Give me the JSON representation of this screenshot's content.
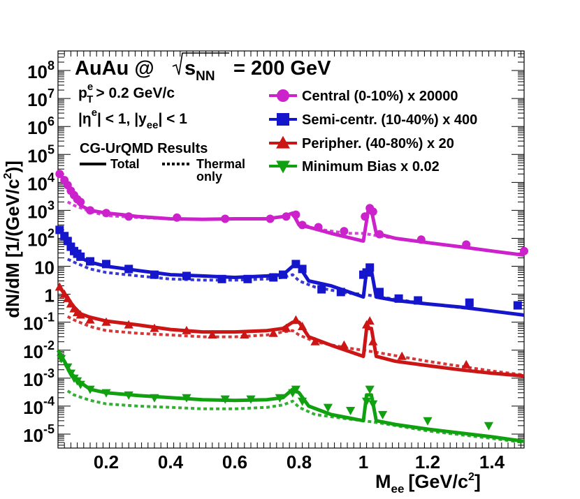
{
  "chart_data": {
    "type": "line",
    "scale": "log",
    "title_main": "AuAu @",
    "title_sqrt": "s",
    "title_sqrt_sub": "NN",
    "title_energy": "= 200 GeV",
    "cuts": {
      "pt_p": "p",
      "pt_sup": "e",
      "pt_sub": "T",
      "pt_rest": "> 0.2 GeV/c",
      "eta_open": "|η",
      "eta_sup": "e",
      "eta_rest": "| < 1, |y",
      "eta_sub": "ee",
      "eta_end": "| < 1"
    },
    "results_label": "CG-UrQMD Results",
    "line_styles": {
      "total": "Total",
      "thermal_line1": "Thermal",
      "thermal_line2": "only"
    },
    "xlabel_main": "M",
    "xlabel_sub": "ee",
    "xlabel_unit": "[GeV/c",
    "xlabel_sup": "2",
    "xlabel_end": "]",
    "ylabel_main": "dN/dM [1/(GeV/c",
    "ylabel_sup": "2",
    "ylabel_end": ")]",
    "xlim": [
      0.05,
      1.5
    ],
    "ylim_decades": [
      -5.5,
      8.7
    ],
    "x_ticks": [
      "0.2",
      "0.4",
      "0.6",
      "0.8",
      "1",
      "1.2",
      "1.4"
    ],
    "x_tick_values": [
      0.2,
      0.4,
      0.6,
      0.8,
      1.0,
      1.2,
      1.4
    ],
    "y_ticks": [
      {
        "decade": 8,
        "base": "10",
        "exp": "8"
      },
      {
        "decade": 7,
        "base": "10",
        "exp": "7"
      },
      {
        "decade": 6,
        "base": "10",
        "exp": "6"
      },
      {
        "decade": 5,
        "base": "10",
        "exp": "5"
      },
      {
        "decade": 4,
        "base": "10",
        "exp": "4"
      },
      {
        "decade": 3,
        "base": "10",
        "exp": "3"
      },
      {
        "decade": 2,
        "base": "10",
        "exp": "2"
      },
      {
        "decade": 1,
        "base": "10",
        "exp": ""
      },
      {
        "decade": 0,
        "base": "1",
        "exp": ""
      },
      {
        "decade": -1,
        "base": "10",
        "exp": "-1"
      },
      {
        "decade": -2,
        "base": "10",
        "exp": "-2"
      },
      {
        "decade": -3,
        "base": "10",
        "exp": "-3"
      },
      {
        "decade": -4,
        "base": "10",
        "exp": "-4"
      },
      {
        "decade": -5,
        "base": "10",
        "exp": "-5"
      }
    ],
    "series": [
      {
        "name": "Central (0-10%)",
        "factor": "x 20000",
        "color": "#cc22cc",
        "marker": "circle",
        "total_x": [
          0.06,
          0.08,
          0.1,
          0.12,
          0.15,
          0.2,
          0.25,
          0.3,
          0.4,
          0.5,
          0.6,
          0.7,
          0.75,
          0.78,
          0.8,
          0.83,
          0.9,
          1.0,
          1.015,
          1.025,
          1.04,
          1.1,
          1.2,
          1.3,
          1.4,
          1.5
        ],
        "total_y": [
          18000,
          8000,
          3500,
          1500,
          1000,
          800,
          700,
          600,
          500,
          480,
          500,
          500,
          600,
          800,
          300,
          250,
          150,
          80,
          1000,
          1000,
          150,
          100,
          70,
          50,
          35,
          25
        ],
        "thermal_x": [
          0.08,
          0.1,
          0.15,
          0.2,
          0.3,
          0.4,
          0.5,
          0.6,
          0.7,
          0.75,
          0.78,
          0.8,
          0.85,
          0.95,
          1.0,
          1.05,
          1.2,
          1.4,
          1.5
        ],
        "thermal_y": [
          2000,
          1500,
          900,
          650,
          550,
          500,
          480,
          500,
          520,
          600,
          700,
          350,
          220,
          150,
          150,
          120,
          70,
          35,
          25
        ],
        "markers_x": [
          0.055,
          0.07,
          0.08,
          0.09,
          0.1,
          0.11,
          0.12,
          0.15,
          0.2,
          0.27,
          0.42,
          0.57,
          0.71,
          0.76,
          0.79,
          0.81,
          0.86,
          0.94,
          1.005,
          1.02,
          1.03,
          1.05,
          1.18,
          1.32,
          1.5
        ],
        "markers_y": [
          20000,
          12000,
          8000,
          5000,
          3500,
          2500,
          2000,
          1000,
          800,
          600,
          550,
          500,
          500,
          600,
          700,
          300,
          250,
          180,
          600,
          1200,
          900,
          140,
          90,
          60,
          35
        ]
      },
      {
        "name": "Semi-centr. (10-40%)",
        "factor": "x 400",
        "color": "#1515cc",
        "marker": "square",
        "total_x": [
          0.06,
          0.08,
          0.1,
          0.12,
          0.15,
          0.2,
          0.3,
          0.4,
          0.5,
          0.6,
          0.7,
          0.75,
          0.78,
          0.8,
          0.83,
          0.9,
          1.0,
          1.01,
          1.025,
          1.04,
          1.1,
          1.2,
          1.3,
          1.4,
          1.5
        ],
        "total_y": [
          180,
          90,
          40,
          20,
          14,
          10,
          7,
          5,
          4.5,
          4,
          4.5,
          5,
          10,
          10,
          3,
          2,
          0.8,
          7,
          7,
          0.8,
          0.6,
          0.45,
          0.35,
          0.25,
          0.18
        ],
        "thermal_x": [
          0.08,
          0.1,
          0.15,
          0.2,
          0.3,
          0.4,
          0.5,
          0.6,
          0.7,
          0.75,
          0.78,
          0.8,
          0.85,
          0.95,
          1.0,
          1.05,
          1.2,
          1.4,
          1.5
        ],
        "thermal_y": [
          18,
          14,
          8,
          6,
          4.5,
          3.5,
          3.2,
          3.2,
          3.5,
          4,
          5,
          3,
          1.8,
          1.1,
          1,
          0.8,
          0.45,
          0.25,
          0.18
        ],
        "markers_x": [
          0.055,
          0.07,
          0.08,
          0.09,
          0.1,
          0.11,
          0.12,
          0.15,
          0.2,
          0.27,
          0.35,
          0.45,
          0.56,
          0.64,
          0.72,
          0.75,
          0.79,
          0.81,
          0.87,
          0.93,
          1.0,
          1.01,
          1.02,
          1.05,
          1.11,
          1.17,
          1.33,
          1.48
        ],
        "markers_y": [
          200,
          120,
          80,
          50,
          35,
          28,
          22,
          15,
          12,
          8,
          5,
          4.5,
          3.5,
          3.5,
          4,
          5,
          12,
          8,
          1.5,
          1.2,
          5,
          6,
          9,
          1.2,
          0.7,
          0.6,
          0.5,
          0.4
        ]
      },
      {
        "name": "Peripher. (40-80%)",
        "factor": "x 20",
        "color": "#cc1515",
        "marker": "triangle-up",
        "total_x": [
          0.06,
          0.08,
          0.1,
          0.12,
          0.15,
          0.2,
          0.3,
          0.4,
          0.5,
          0.6,
          0.7,
          0.75,
          0.78,
          0.8,
          0.83,
          0.9,
          1.0,
          1.01,
          1.025,
          1.04,
          1.1,
          1.2,
          1.3,
          1.4,
          1.5
        ],
        "total_y": [
          1.5,
          0.7,
          0.35,
          0.2,
          0.15,
          0.11,
          0.08,
          0.055,
          0.045,
          0.045,
          0.05,
          0.06,
          0.1,
          0.1,
          0.03,
          0.015,
          0.006,
          0.06,
          0.06,
          0.006,
          0.004,
          0.0028,
          0.002,
          0.0015,
          0.0012
        ],
        "thermal_x": [
          0.08,
          0.1,
          0.15,
          0.2,
          0.3,
          0.4,
          0.5,
          0.6,
          0.7,
          0.75,
          0.78,
          0.8,
          0.85,
          0.95,
          1.0,
          1.05,
          1.2,
          1.4,
          1.5
        ],
        "thermal_y": [
          0.16,
          0.12,
          0.07,
          0.05,
          0.04,
          0.035,
          0.03,
          0.03,
          0.035,
          0.045,
          0.05,
          0.035,
          0.02,
          0.012,
          0.01,
          0.008,
          0.004,
          0.0018,
          0.0013
        ],
        "markers_x": [
          0.055,
          0.07,
          0.08,
          0.09,
          0.1,
          0.11,
          0.12,
          0.15,
          0.2,
          0.27,
          0.35,
          0.45,
          0.53,
          0.63,
          0.72,
          0.76,
          0.79,
          0.81,
          0.85,
          0.94,
          1.01,
          1.02,
          1.03,
          1.12,
          1.32
        ],
        "markers_y": [
          1.8,
          1.0,
          0.7,
          0.45,
          0.3,
          0.22,
          0.18,
          0.12,
          0.1,
          0.08,
          0.06,
          0.05,
          0.035,
          0.035,
          0.04,
          0.06,
          0.12,
          0.07,
          0.02,
          0.015,
          0.08,
          0.11,
          0.02,
          0.006,
          0.003
        ]
      },
      {
        "name": "Minimum Bias",
        "factor": "x 0.02",
        "color": "#10a010",
        "marker": "triangle-down",
        "total_x": [
          0.05,
          0.07,
          0.09,
          0.12,
          0.15,
          0.2,
          0.3,
          0.4,
          0.5,
          0.6,
          0.7,
          0.75,
          0.78,
          0.8,
          0.83,
          0.9,
          1.0,
          1.01,
          1.025,
          1.04,
          1.1,
          1.2,
          1.3,
          1.4,
          1.5
        ],
        "total_y": [
          0.01,
          0.004,
          0.0015,
          0.0007,
          0.0004,
          0.0003,
          0.00024,
          0.0002,
          0.00017,
          0.00016,
          0.00017,
          0.0002,
          0.0004,
          0.0003,
          0.0001,
          5e-05,
          3e-05,
          0.00025,
          0.00025,
          3e-05,
          2.2e-05,
          1.5e-05,
          1.1e-05,
          8e-06,
          5.5e-06
        ],
        "thermal_x": [
          0.08,
          0.1,
          0.15,
          0.2,
          0.3,
          0.4,
          0.5,
          0.6,
          0.7,
          0.75,
          0.78,
          0.8,
          0.85,
          0.95,
          1.0,
          1.05,
          1.2,
          1.4,
          1.5
        ],
        "thermal_y": [
          0.00035,
          0.00025,
          0.00016,
          0.00012,
          0.0001,
          9e-05,
          8e-05,
          8e-05,
          9e-05,
          0.00011,
          0.00015,
          9e-05,
          5e-05,
          3.5e-05,
          3e-05,
          2.5e-05,
          1.3e-05,
          7e-06,
          5e-06
        ],
        "markers_x": [
          0.06,
          0.08,
          0.09,
          0.1,
          0.11,
          0.12,
          0.15,
          0.2,
          0.27,
          0.35,
          0.45,
          0.57,
          0.65,
          0.74,
          0.78,
          0.79,
          0.81,
          0.89,
          0.96,
          1.01,
          1.02,
          1.03,
          1.06,
          1.2,
          1.39
        ],
        "markers_y": [
          0.005,
          0.0025,
          0.0015,
          0.001,
          0.0008,
          0.0006,
          0.0004,
          0.0003,
          0.00025,
          0.0002,
          0.0002,
          0.00018,
          0.00018,
          0.0002,
          0.0003,
          0.0004,
          0.00015,
          9e-05,
          7e-05,
          0.00015,
          0.0004,
          0.00012,
          5e-05,
          3e-05,
          2e-05
        ]
      }
    ]
  }
}
